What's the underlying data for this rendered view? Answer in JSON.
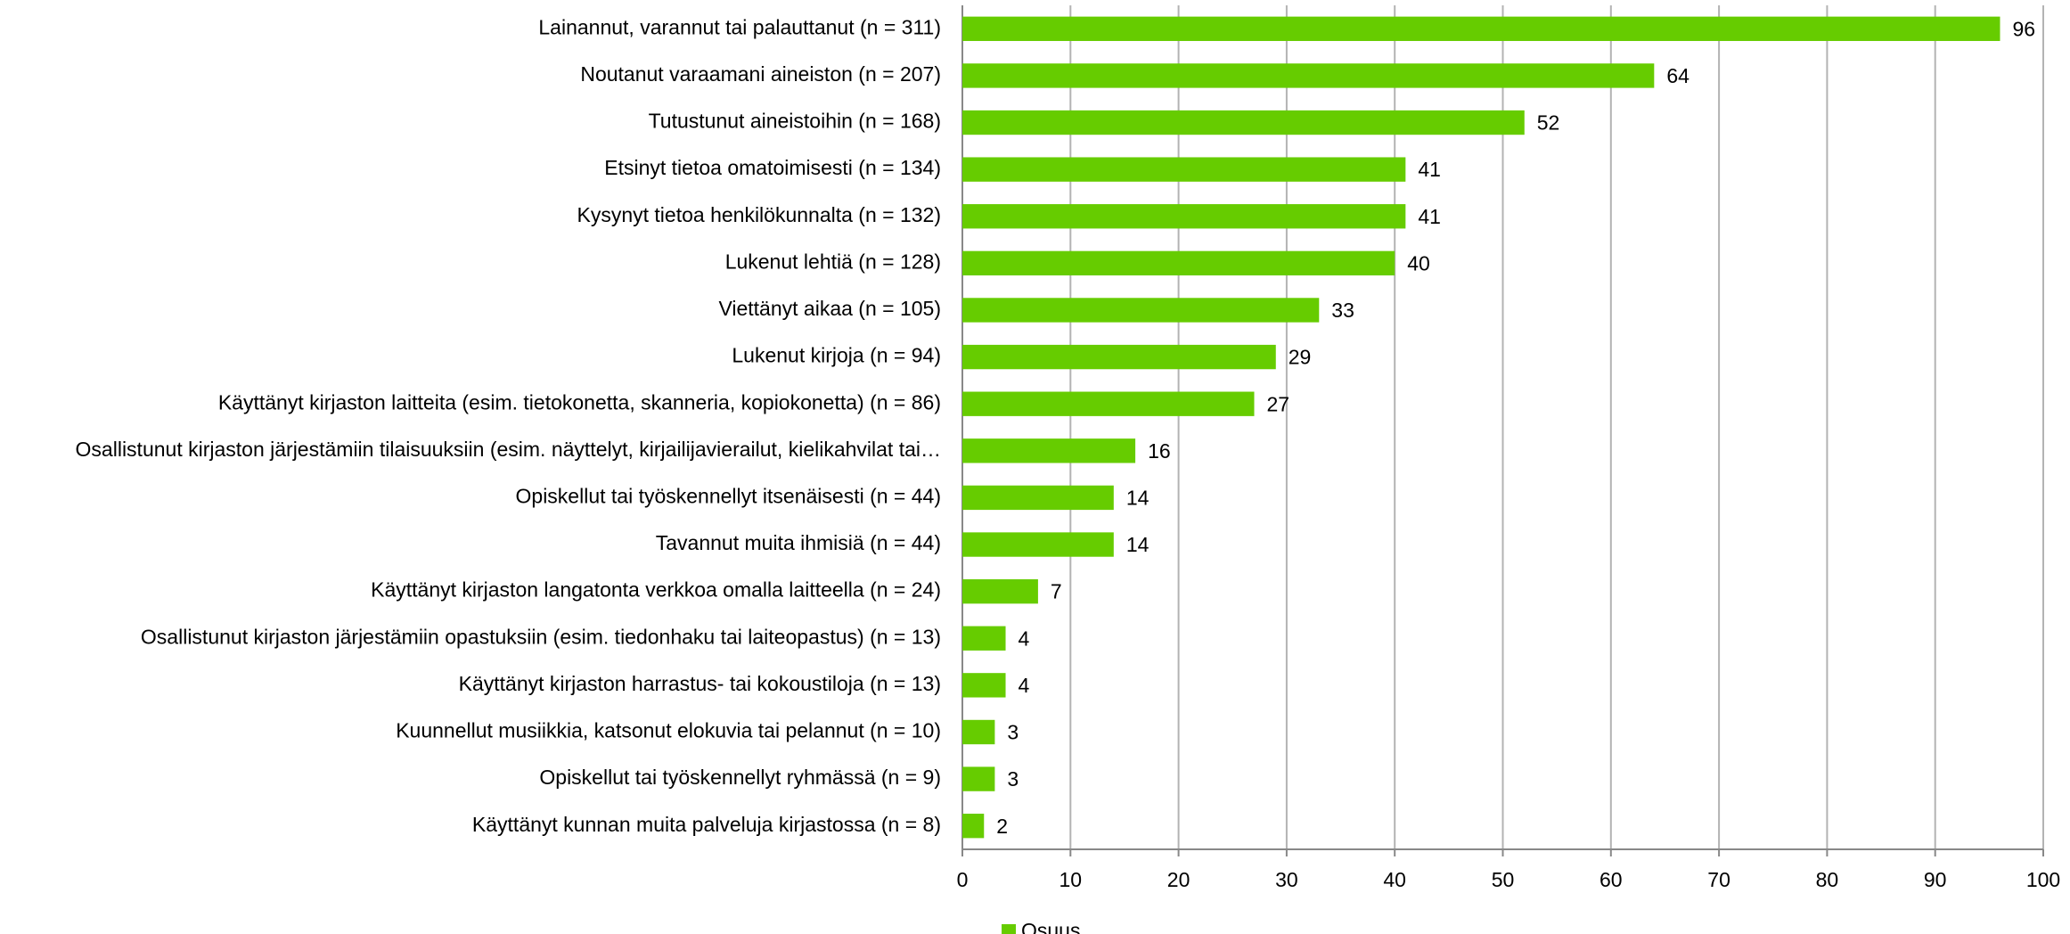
{
  "chart_data": {
    "type": "bar",
    "orientation": "horizontal",
    "categories": [
      "Lainannut, varannut tai palauttanut (n = 311)",
      "Noutanut varaamani aineiston (n = 207)",
      "Tutustunut aineistoihin (n = 168)",
      "Etsinyt tietoa omatoimisesti (n = 134)",
      "Kysynyt tietoa henkilökunnalta (n = 132)",
      "Lukenut lehtiä (n = 128)",
      "Viettänyt aikaa (n = 105)",
      "Lukenut kirjoja (n = 94)",
      "Käyttänyt kirjaston laitteita (esim. tietokonetta, skanneria, kopiokonetta) (n = 86)",
      "Osallistunut kirjaston järjestämiin tilaisuuksiin (esim. näyttelyt, kirjailijavierailut, kielikahvilat tai…",
      "Opiskellut tai työskennellyt itsenäisesti (n = 44)",
      "Tavannut muita ihmisiä (n = 44)",
      "Käyttänyt kirjaston langatonta verkkoa omalla laitteella (n = 24)",
      "Osallistunut kirjaston järjestämiin opastuksiin (esim. tiedonhaku tai laiteopastus) (n = 13)",
      "Käyttänyt kirjaston harrastus- tai kokoustiloja (n = 13)",
      "Kuunnellut musiikkia, katsonut elokuvia tai pelannut (n = 10)",
      "Opiskellut tai työskennellyt ryhmässä (n = 9)",
      "Käyttänyt kunnan muita palveluja kirjastossa (n = 8)"
    ],
    "series": [
      {
        "name": "Osuus",
        "color": "#66cc00",
        "values": [
          96,
          64,
          52,
          41,
          41,
          40,
          33,
          29,
          27,
          16,
          14,
          14,
          7,
          4,
          4,
          3,
          3,
          2
        ]
      }
    ],
    "xlim": [
      0,
      100
    ],
    "xticks": [
      0,
      10,
      20,
      30,
      40,
      50,
      60,
      70,
      80,
      90,
      100
    ],
    "grid": true,
    "legend": "bottom"
  }
}
